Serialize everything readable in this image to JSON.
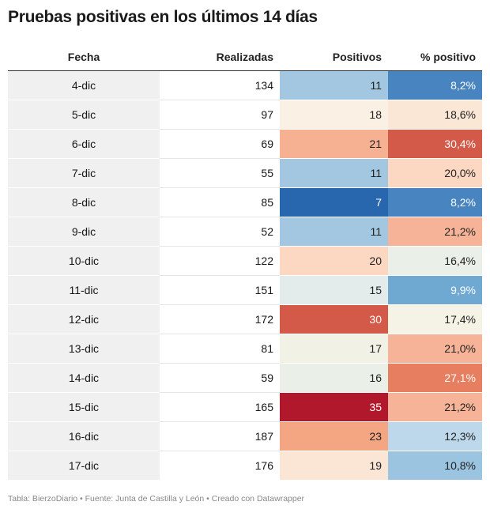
{
  "title": "Pruebas positivas en los últimos 14 días",
  "footer": "Tabla: BierzoDiario • Fuente: Junta de Castilla y León • Creado con Datawrapper",
  "chart_data": {
    "type": "table",
    "title": "Pruebas positivas en los últimos 14 días",
    "columns": [
      "Fecha",
      "Realizadas",
      "Positivos",
      "% positivo"
    ],
    "rows": [
      {
        "fecha": "4-dic",
        "realizadas": "134",
        "positivos": "11",
        "pct": "8,2%",
        "pos_bg": "#a3c7e0",
        "pos_fg": "#222222",
        "pct_bg": "#4784c0",
        "pct_fg": "#ffffff"
      },
      {
        "fecha": "5-dic",
        "realizadas": "97",
        "positivos": "18",
        "pct": "18,6%",
        "pos_bg": "#fbf0e4",
        "pos_fg": "#222222",
        "pct_bg": "#fbe7d6",
        "pct_fg": "#222222"
      },
      {
        "fecha": "6-dic",
        "realizadas": "69",
        "positivos": "21",
        "pct": "30,4%",
        "pos_bg": "#f6b193",
        "pos_fg": "#222222",
        "pct_bg": "#d35a48",
        "pct_fg": "#ffffff"
      },
      {
        "fecha": "7-dic",
        "realizadas": "55",
        "positivos": "11",
        "pct": "20,0%",
        "pos_bg": "#a3c7e0",
        "pos_fg": "#222222",
        "pct_bg": "#fcd8c2",
        "pct_fg": "#222222"
      },
      {
        "fecha": "8-dic",
        "realizadas": "85",
        "positivos": "7",
        "pct": "8,2%",
        "pos_bg": "#2866ad",
        "pos_fg": "#ffffff",
        "pct_bg": "#4784c0",
        "pct_fg": "#ffffff"
      },
      {
        "fecha": "9-dic",
        "realizadas": "52",
        "positivos": "11",
        "pct": "21,2%",
        "pos_bg": "#a3c7e0",
        "pos_fg": "#222222",
        "pct_bg": "#f7b397",
        "pct_fg": "#222222"
      },
      {
        "fecha": "10-dic",
        "realizadas": "122",
        "positivos": "20",
        "pct": "16,4%",
        "pos_bg": "#fcd8c2",
        "pos_fg": "#222222",
        "pct_bg": "#eaefe8",
        "pct_fg": "#222222"
      },
      {
        "fecha": "11-dic",
        "realizadas": "151",
        "positivos": "15",
        "pct": "9,9%",
        "pos_bg": "#e3ecea",
        "pos_fg": "#222222",
        "pct_bg": "#6fa8d1",
        "pct_fg": "#ffffff"
      },
      {
        "fecha": "12-dic",
        "realizadas": "172",
        "positivos": "30",
        "pct": "17,4%",
        "pos_bg": "#d35a48",
        "pos_fg": "#ffffff",
        "pct_bg": "#f5f2e6",
        "pct_fg": "#222222"
      },
      {
        "fecha": "13-dic",
        "realizadas": "81",
        "positivos": "17",
        "pct": "21,0%",
        "pos_bg": "#f2f1e6",
        "pos_fg": "#222222",
        "pct_bg": "#f7b397",
        "pct_fg": "#222222"
      },
      {
        "fecha": "14-dic",
        "realizadas": "59",
        "positivos": "16",
        "pct": "27,1%",
        "pos_bg": "#eaefe8",
        "pos_fg": "#222222",
        "pct_bg": "#e77e5f",
        "pct_fg": "#ffffff"
      },
      {
        "fecha": "15-dic",
        "realizadas": "165",
        "positivos": "35",
        "pct": "21,2%",
        "pos_bg": "#b2182b",
        "pos_fg": "#ffffff",
        "pct_bg": "#f7b397",
        "pct_fg": "#222222"
      },
      {
        "fecha": "16-dic",
        "realizadas": "187",
        "positivos": "23",
        "pct": "12,3%",
        "pos_bg": "#f4a582",
        "pos_fg": "#222222",
        "pct_bg": "#bcd8ea",
        "pct_fg": "#222222"
      },
      {
        "fecha": "17-dic",
        "realizadas": "176",
        "positivos": "19",
        "pct": "10,8%",
        "pos_bg": "#fbe5d4",
        "pos_fg": "#222222",
        "pct_bg": "#9ac4df",
        "pct_fg": "#222222"
      }
    ]
  }
}
